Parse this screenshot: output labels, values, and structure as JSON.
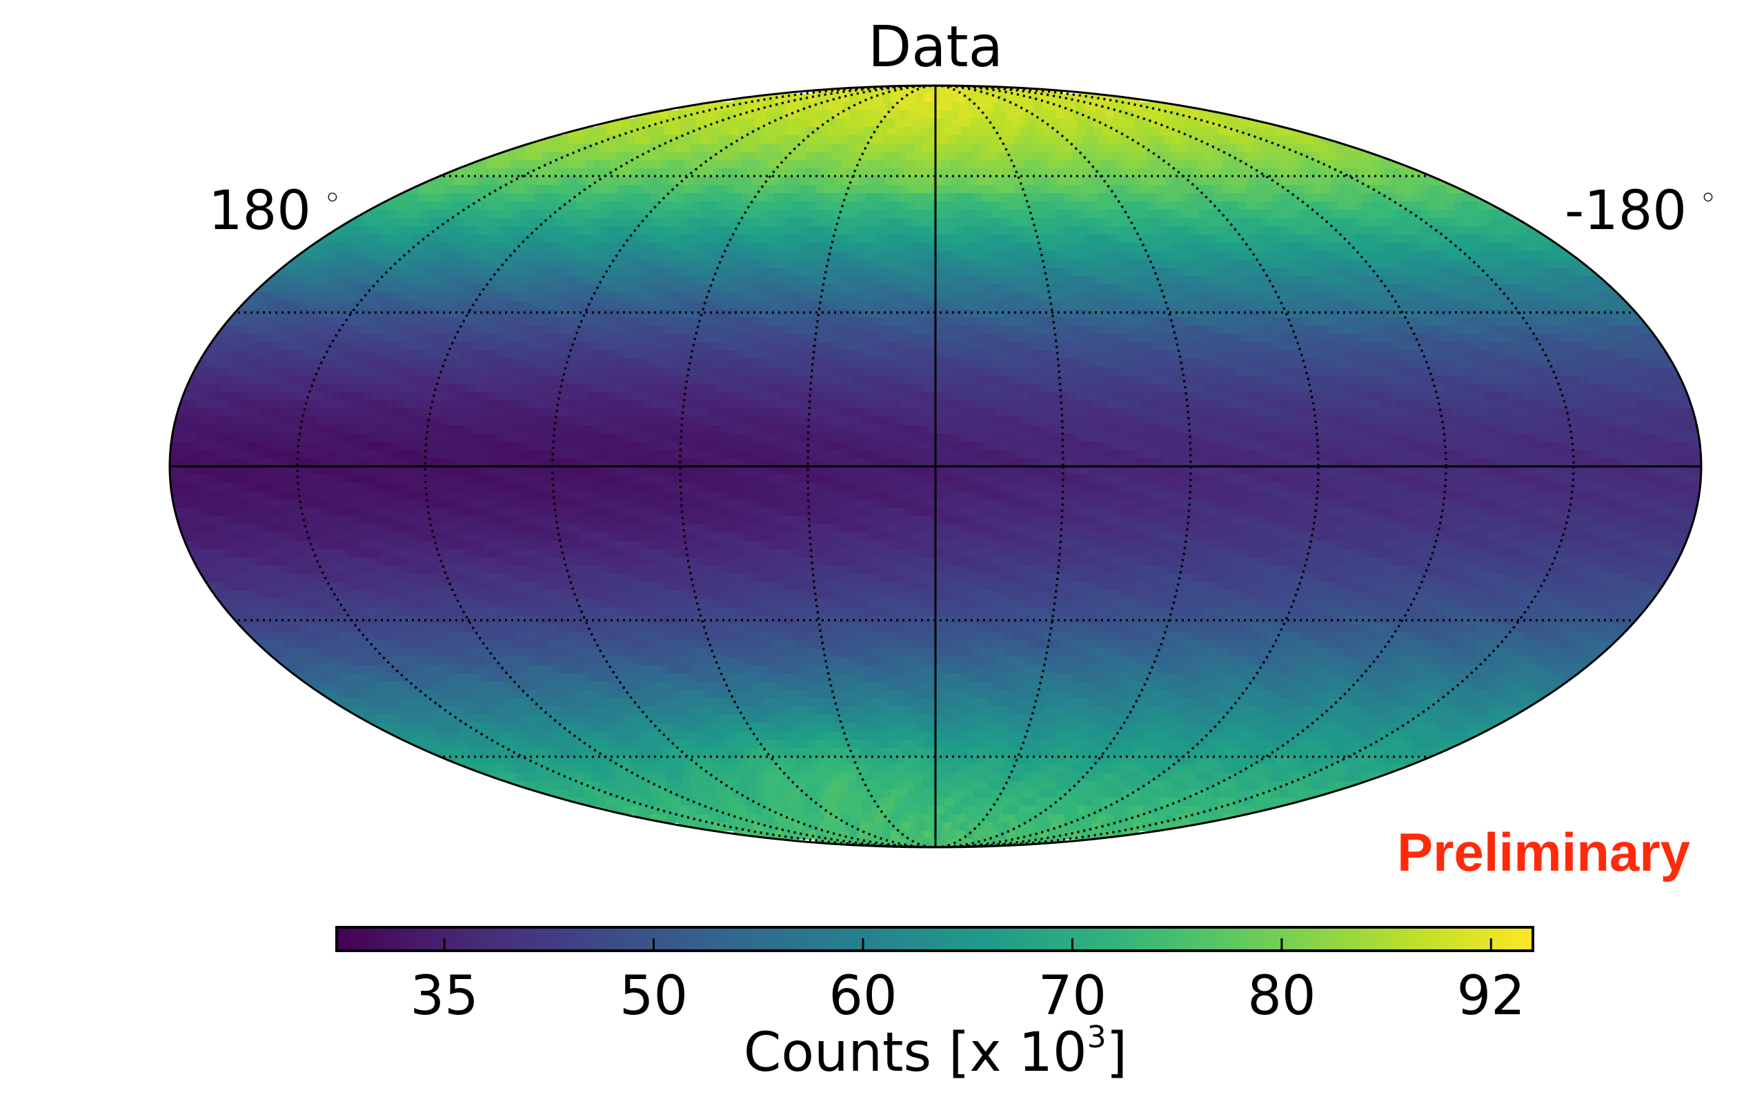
{
  "chart_data": {
    "type": "heatmap",
    "title": "Data",
    "projection": "mollweide",
    "lon_label_left": "180",
    "lon_label_right": "-180",
    "degree_symbol": "◦",
    "graticule": {
      "meridians_deg": [
        -150,
        -120,
        -90,
        -60,
        -30,
        0,
        30,
        60,
        90,
        120,
        150
      ],
      "parallels_deg": [
        -60,
        -30,
        0,
        30,
        60
      ],
      "style": "dotted",
      "solid_lines": [
        "equator",
        "central meridian"
      ]
    },
    "colormap": "viridis",
    "colors": {
      "viridis_stops": [
        "#440154",
        "#482878",
        "#3e4989",
        "#31688e",
        "#26828e",
        "#1f9e89",
        "#35b779",
        "#6ece58",
        "#b5de2b",
        "#fde725"
      ],
      "preliminary": "#ff2a0c"
    },
    "colorbar": {
      "label_prefix": "Counts [x 10",
      "label_exponent": "3",
      "label_suffix": "]",
      "range": [
        25,
        94
      ],
      "ticks": [
        35,
        50,
        60,
        70,
        80,
        92
      ],
      "tick_labels": [
        "35",
        "50",
        "60",
        "70",
        "80",
        "92"
      ],
      "scale": "nonlinear (equalized)"
    },
    "map_summary": {
      "max_near_poles": 92,
      "north_pole_approx": 90,
      "south_pole_approx": 75,
      "equator_left_approx": 38,
      "equator_right_approx": 30,
      "minimum_approx": 28
    },
    "annotation": "Preliminary"
  }
}
